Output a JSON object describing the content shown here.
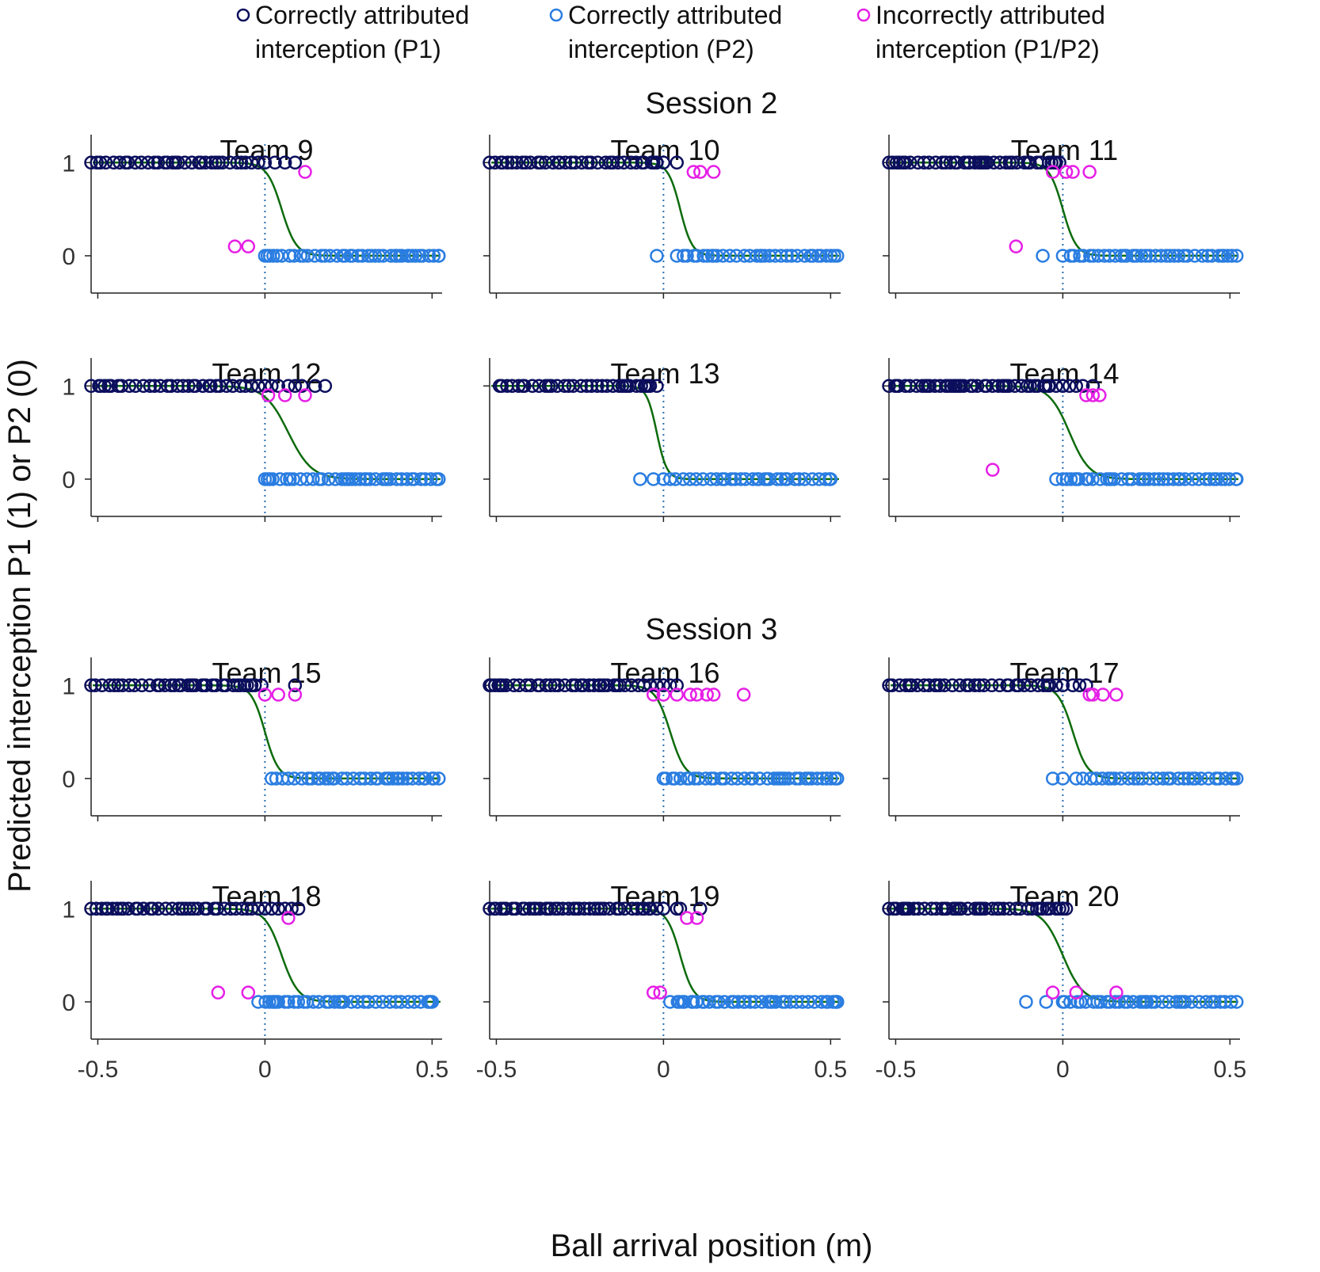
{
  "chart_data": {
    "type": "scatter",
    "xlabel": "Ball arrival position (m)",
    "ylabel": "Predicted interception P1 (1) or P2 (0)",
    "xlim": [
      -0.52,
      0.53
    ],
    "ylim": [
      -0.4,
      1.3
    ],
    "xticks": [
      -0.5,
      0,
      0.5
    ],
    "xtick_labels": [
      "-0.5",
      "0",
      "0.5"
    ],
    "yticks": [
      0,
      1
    ],
    "ytick_labels": [
      "0",
      "1"
    ],
    "legend": {
      "placement": "top",
      "entries": [
        {
          "key": "p1",
          "line1": "Correctly attributed",
          "line2": "interception (P1)",
          "color": "#0b0e5c"
        },
        {
          "key": "p2",
          "line1": "Correctly attributed",
          "line2": "interception (P2)",
          "color": "#2a7de1"
        },
        {
          "key": "wrong",
          "line1": "Incorrectly attributed",
          "line2": "interception (P1/P2)",
          "color": "#e61fe6"
        }
      ]
    },
    "colors": {
      "p1": "#0b0e5c",
      "p2": "#2a7de1",
      "wrong": "#e61fe6",
      "fit": "#0c6b0c",
      "boundary": "#2a6fb0"
    },
    "sessions": [
      {
        "title": "Session 2",
        "panels": [
          {
            "title": "Team 9",
            "fit": {
              "center": 0.05,
              "scale": 0.022
            },
            "p1": {
              "min": -0.52,
              "max": -0.04,
              "extra": [
                -0.02,
                0.0,
                0.03,
                0.06,
                0.09
              ]
            },
            "p2": {
              "min": 0.0,
              "max": 0.52,
              "extra": []
            },
            "wrong_top": [
              0.12
            ],
            "wrong_bottom": [
              -0.09,
              -0.05
            ]
          },
          {
            "title": "Team 10",
            "fit": {
              "center": 0.05,
              "scale": 0.018
            },
            "p1": {
              "min": -0.52,
              "max": -0.02,
              "extra": [
                0.0,
                0.04
              ]
            },
            "p2": {
              "min": 0.04,
              "max": 0.52,
              "extra": [
                -0.02
              ]
            },
            "wrong_top": [
              0.09,
              0.11,
              0.15
            ],
            "wrong_bottom": []
          },
          {
            "title": "Team 11",
            "fit": {
              "center": 0.0,
              "scale": 0.02
            },
            "p1": {
              "min": -0.52,
              "max": -0.02,
              "extra": [
                -0.01
              ]
            },
            "p2": {
              "min": 0.0,
              "max": 0.52,
              "extra": [
                -0.06
              ]
            },
            "wrong_top": [
              -0.03,
              0.01,
              0.03,
              0.08
            ],
            "wrong_bottom": [
              -0.14
            ]
          },
          {
            "title": "Team 12",
            "fit": {
              "center": 0.07,
              "scale": 0.035
            },
            "p1": {
              "min": -0.52,
              "max": -0.04,
              "extra": [
                -0.02,
                0.0,
                0.02,
                0.04,
                0.07,
                0.09,
                0.11,
                0.15,
                0.18
              ]
            },
            "p2": {
              "min": 0.0,
              "max": 0.52,
              "extra": []
            },
            "wrong_top": [
              0.01,
              0.06,
              0.12
            ],
            "wrong_bottom": []
          },
          {
            "title": "Team 13",
            "fit": {
              "center": -0.02,
              "scale": 0.015
            },
            "p1": {
              "min": -0.49,
              "max": -0.04,
              "extra": [
                -0.02
              ]
            },
            "p2": {
              "min": 0.0,
              "max": 0.5,
              "extra": [
                -0.07,
                -0.03
              ]
            },
            "wrong_top": [],
            "wrong_bottom": []
          },
          {
            "title": "Team 14",
            "fit": {
              "center": 0.02,
              "scale": 0.03
            },
            "p1": {
              "min": -0.52,
              "max": -0.04,
              "extra": [
                -0.02,
                0.0,
                0.02,
                0.04,
                0.06,
                0.09
              ]
            },
            "p2": {
              "min": 0.0,
              "max": 0.52,
              "extra": [
                -0.02
              ]
            },
            "wrong_top": [
              0.07,
              0.09,
              0.11
            ],
            "wrong_bottom": [
              -0.21
            ]
          }
        ]
      },
      {
        "title": "Session 3",
        "panels": [
          {
            "title": "Team 15",
            "fit": {
              "center": 0.0,
              "scale": 0.02
            },
            "p1": {
              "min": -0.52,
              "max": -0.04,
              "extra": [
                -0.03,
                -0.01,
                0.09
              ]
            },
            "p2": {
              "min": 0.02,
              "max": 0.52,
              "extra": []
            },
            "wrong_top": [
              0.0,
              0.04,
              0.09
            ],
            "wrong_bottom": []
          },
          {
            "title": "Team 16",
            "fit": {
              "center": 0.02,
              "scale": 0.022
            },
            "p1": {
              "min": -0.52,
              "max": -0.04,
              "extra": [
                -0.02,
                0.0,
                0.02,
                0.04
              ]
            },
            "p2": {
              "min": 0.0,
              "max": 0.52,
              "extra": []
            },
            "wrong_top": [
              -0.03,
              0.0,
              0.04,
              0.08,
              0.1,
              0.13,
              0.15,
              0.24
            ],
            "wrong_bottom": []
          },
          {
            "title": "Team 17",
            "fit": {
              "center": 0.03,
              "scale": 0.022
            },
            "p1": {
              "min": -0.52,
              "max": -0.04,
              "extra": [
                -0.02,
                0.0,
                0.03,
                0.05,
                0.07
              ]
            },
            "p2": {
              "min": 0.06,
              "max": 0.52,
              "extra": [
                -0.03,
                0.0,
                0.04
              ]
            },
            "wrong_top": [
              0.08,
              0.09,
              0.12,
              0.16
            ],
            "wrong_bottom": []
          },
          {
            "title": "Team 18",
            "fit": {
              "center": 0.05,
              "scale": 0.025
            },
            "p1": {
              "min": -0.52,
              "max": -0.04,
              "extra": [
                -0.02,
                0.0,
                0.02,
                0.04,
                0.06,
                0.08,
                0.1
              ]
            },
            "p2": {
              "min": -0.02,
              "max": 0.5,
              "extra": []
            },
            "wrong_top": [
              0.07
            ],
            "wrong_bottom": [
              -0.14,
              -0.05
            ]
          },
          {
            "title": "Team 19",
            "fit": {
              "center": 0.05,
              "scale": 0.02
            },
            "p1": {
              "min": -0.52,
              "max": -0.04,
              "extra": [
                -0.02,
                0.0,
                0.04,
                0.05,
                0.11
              ]
            },
            "p2": {
              "min": 0.02,
              "max": 0.52,
              "extra": []
            },
            "wrong_top": [
              0.07,
              0.1
            ],
            "wrong_bottom": [
              -0.03,
              -0.01
            ]
          },
          {
            "title": "Team 20",
            "fit": {
              "center": 0.0,
              "scale": 0.03
            },
            "p1": {
              "min": -0.52,
              "max": -0.04,
              "extra": [
                -0.02,
                -0.01,
                0.0,
                0.01
              ]
            },
            "p2": {
              "min": 0.0,
              "max": 0.52,
              "extra": [
                -0.11,
                -0.05
              ]
            },
            "wrong_top": [],
            "wrong_bottom": [
              -0.03,
              0.04,
              0.16
            ]
          }
        ]
      }
    ]
  }
}
